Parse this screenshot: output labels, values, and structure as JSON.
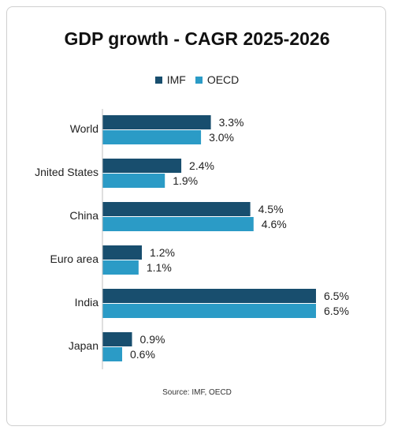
{
  "chart_data": {
    "type": "bar",
    "orientation": "horizontal",
    "title": "GDP growth - CAGR 2025-2026",
    "categories": [
      "World",
      "Jnited States",
      "China",
      "Euro area",
      "India",
      "Japan"
    ],
    "series": [
      {
        "name": "IMF",
        "color": "#184e6e",
        "values": [
          3.3,
          2.4,
          4.5,
          1.2,
          6.5,
          0.9
        ],
        "labels": [
          "3.3%",
          "2.4%",
          "4.5%",
          "1.2%",
          "6.5%",
          "0.9%"
        ]
      },
      {
        "name": "OECD",
        "color": "#2b9bc6",
        "values": [
          3.0,
          1.9,
          4.6,
          1.1,
          6.5,
          0.6
        ],
        "labels": [
          "3.0%",
          "1.9%",
          "4.6%",
          "1.1%",
          "6.5%",
          "0.6%"
        ]
      }
    ],
    "xlim": [
      0,
      6.5
    ],
    "legend_position": "top",
    "grid": false,
    "source": "Source: IMF, OECD"
  }
}
